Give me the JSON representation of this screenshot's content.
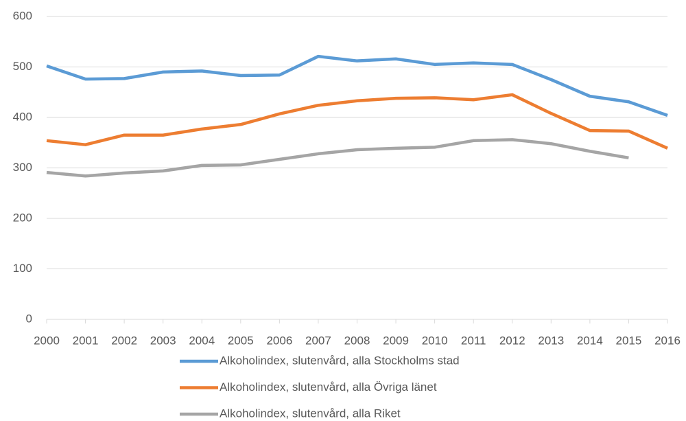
{
  "chart_data": {
    "type": "line",
    "x": [
      2000,
      2001,
      2002,
      2003,
      2004,
      2005,
      2006,
      2007,
      2008,
      2009,
      2010,
      2011,
      2012,
      2013,
      2014,
      2015,
      2016
    ],
    "xlim": [
      2000,
      2016
    ],
    "xticks": [
      2000,
      2001,
      2002,
      2003,
      2004,
      2005,
      2006,
      2007,
      2008,
      2009,
      2010,
      2011,
      2012,
      2013,
      2014,
      2015,
      2016
    ],
    "ylim": [
      0,
      600
    ],
    "yticks": [
      0,
      100,
      200,
      300,
      400,
      500,
      600
    ],
    "grid": true,
    "legend": "bottom",
    "series": [
      {
        "name": "Alkoholindex, slutenvård, alla Stockholms stad",
        "color": "#5b9bd5",
        "values": [
          502,
          476,
          477,
          490,
          492,
          483,
          484,
          521,
          512,
          516,
          505,
          508,
          505,
          475,
          442,
          431,
          404
        ]
      },
      {
        "name": "Alkoholindex, slutenvård, alla Övriga länet",
        "color": "#ed7d31",
        "values": [
          354,
          346,
          365,
          365,
          377,
          386,
          407,
          424,
          433,
          438,
          439,
          435,
          445,
          408,
          374,
          373,
          339
        ]
      },
      {
        "name": "Alkoholindex, slutenvård, alla Riket",
        "color": "#a5a5a5",
        "values": [
          291,
          284,
          290,
          294,
          305,
          306,
          317,
          328,
          336,
          339,
          341,
          354,
          356,
          348,
          333,
          320,
          null
        ]
      }
    ]
  }
}
